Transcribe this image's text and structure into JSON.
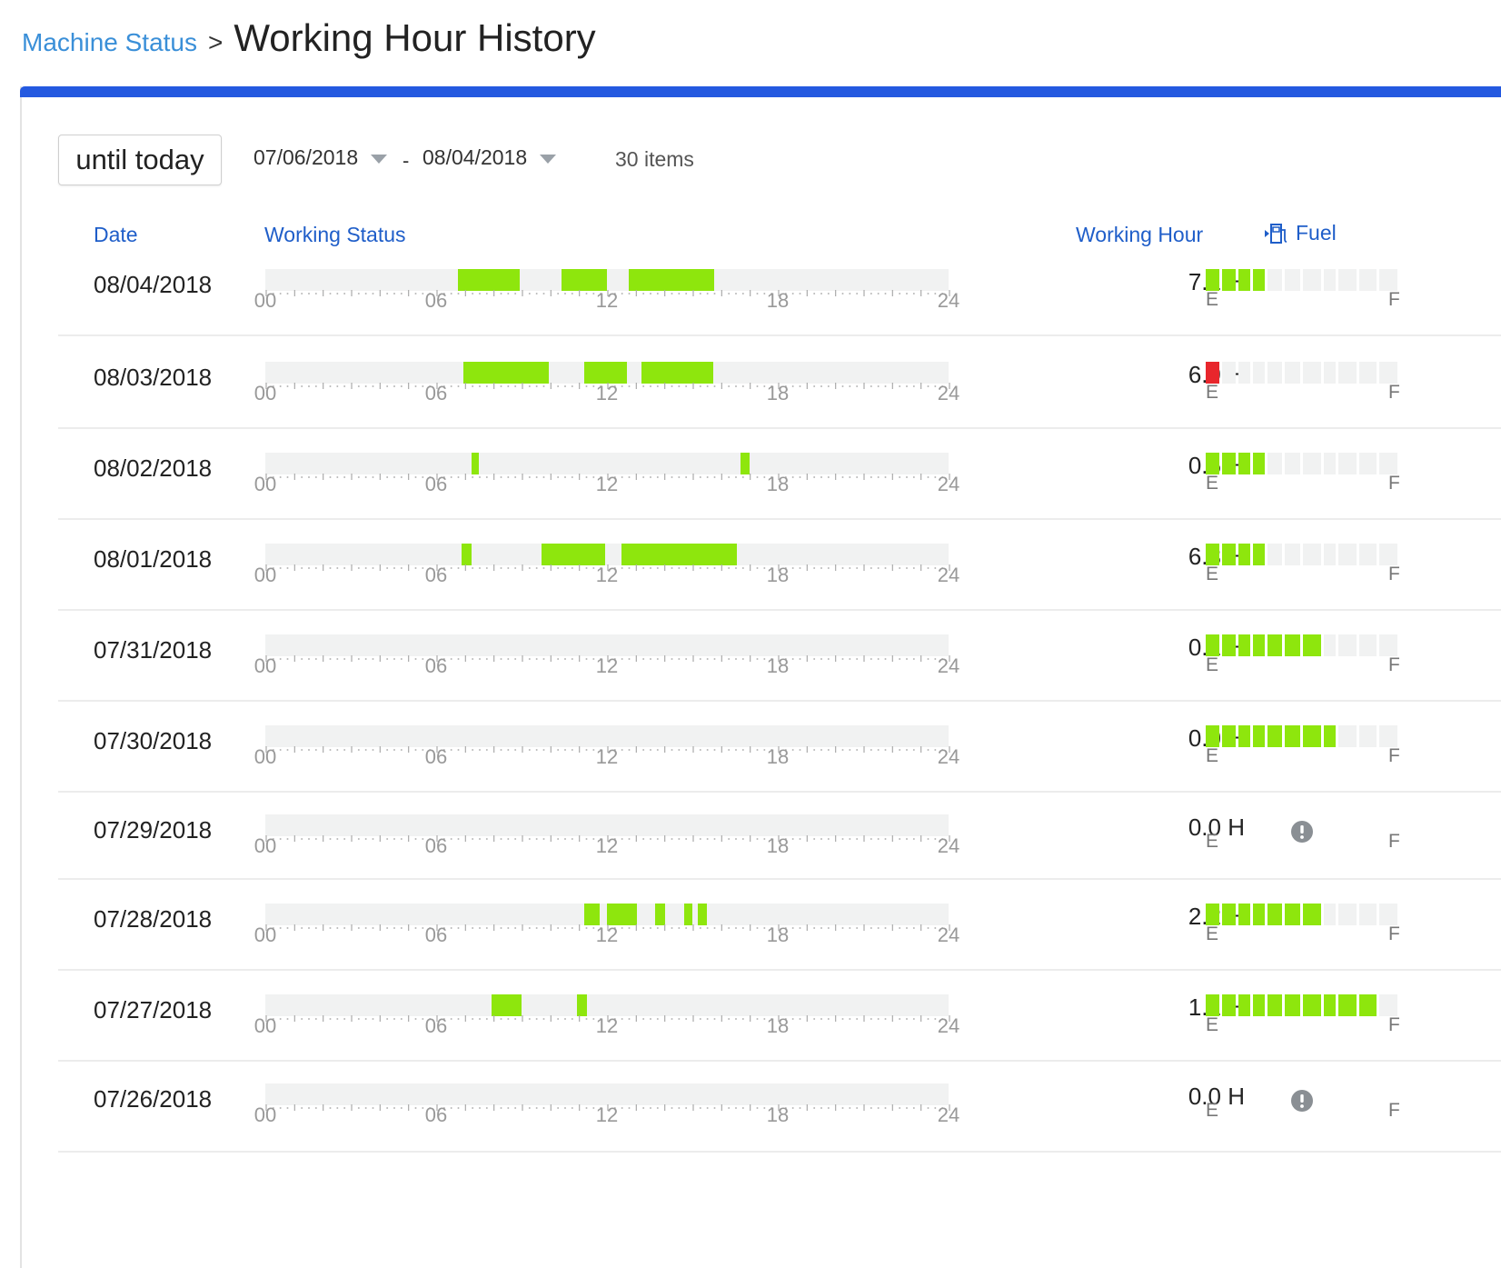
{
  "breadcrumb": {
    "parent": "Machine Status",
    "separator": ">",
    "title": "Working Hour History"
  },
  "toolbar": {
    "until_label": "until today",
    "start_date": "07/06/2018",
    "end_date": "08/04/2018",
    "dash": "-",
    "count": "30 items"
  },
  "headers": {
    "date": "Date",
    "status": "Working Status",
    "hours": "Working Hour",
    "fuel": "Fuel"
  },
  "axis_labels": [
    "00",
    "06",
    "12",
    "18",
    "24"
  ],
  "fuel_scale": {
    "empty": "E",
    "full": "F"
  },
  "colors": {
    "working": "#8ee60d",
    "fuel_ok": "#8ee60d",
    "fuel_low": "#e8262c",
    "accent": "#2459e0",
    "link": "#3a8fd8"
  },
  "rows": [
    {
      "date": "08/04/2018",
      "hours": "7.1 H",
      "segments": [
        [
          6.75,
          8.95
        ],
        [
          10.4,
          12.0
        ],
        [
          12.75,
          15.75
        ]
      ],
      "fuel": {
        "level": 0.3,
        "status": "normal"
      }
    },
    {
      "date": "08/03/2018",
      "hours": "6.9 H",
      "segments": [
        [
          6.95,
          9.95
        ],
        [
          11.2,
          12.7
        ],
        [
          13.2,
          15.75
        ]
      ],
      "fuel": {
        "level": 0.07,
        "status": "low"
      }
    },
    {
      "date": "08/02/2018",
      "hours": "0.5 H",
      "segments": [
        [
          7.25,
          7.5
        ],
        [
          16.7,
          17.0
        ]
      ],
      "fuel": {
        "level": 0.3,
        "status": "normal"
      }
    },
    {
      "date": "08/01/2018",
      "hours": "6.3 H",
      "segments": [
        [
          6.9,
          7.25
        ],
        [
          9.7,
          11.95
        ],
        [
          12.5,
          16.55
        ]
      ],
      "fuel": {
        "level": 0.3,
        "status": "normal"
      }
    },
    {
      "date": "07/31/2018",
      "hours": "0.1 H",
      "segments": [],
      "fuel": {
        "level": 0.6,
        "status": "normal"
      }
    },
    {
      "date": "07/30/2018",
      "hours": "0.0 H",
      "segments": [],
      "fuel": {
        "level": 0.8,
        "status": "normal"
      }
    },
    {
      "date": "07/29/2018",
      "hours": "0.0 H",
      "segments": [],
      "fuel": {
        "level": null,
        "status": "no-data"
      }
    },
    {
      "date": "07/28/2018",
      "hours": "2.2 H",
      "segments": [
        [
          11.2,
          11.75
        ],
        [
          12.0,
          13.05
        ],
        [
          13.7,
          14.05
        ],
        [
          14.7,
          15.0
        ],
        [
          15.2,
          15.5
        ]
      ],
      "fuel": {
        "level": 0.7,
        "status": "normal"
      }
    },
    {
      "date": "07/27/2018",
      "hours": "1.1 H",
      "segments": [
        [
          7.95,
          9.0
        ],
        [
          10.95,
          11.3
        ]
      ],
      "fuel": {
        "level": 1.0,
        "status": "normal"
      }
    },
    {
      "date": "07/26/2018",
      "hours": "0.0 H",
      "segments": [],
      "fuel": {
        "level": null,
        "status": "no-data"
      }
    }
  ]
}
